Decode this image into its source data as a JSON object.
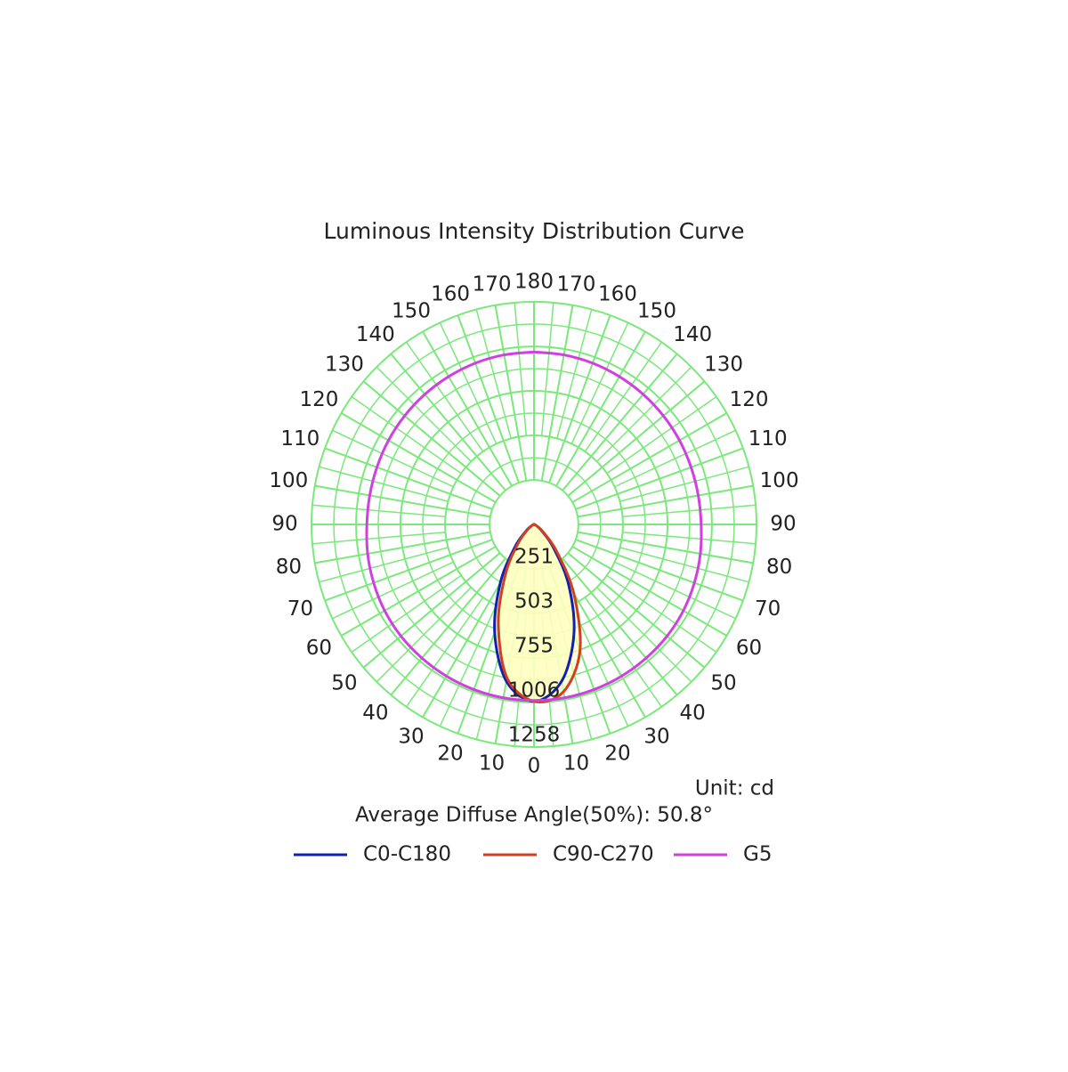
{
  "chart_data": {
    "type": "polar",
    "title": "Luminous Intensity Distribution Curve",
    "unit": "Unit: cd",
    "note": "Average Diffuse Angle(50%): 50.8°",
    "rlim": [
      0,
      1258
    ],
    "rticks": [
      251,
      503,
      755,
      1006,
      1258
    ],
    "xticks": [
      {
        "value": -170,
        "label": "170"
      },
      {
        "value": -160,
        "label": "160"
      },
      {
        "value": -150,
        "label": "150"
      },
      {
        "value": -140,
        "label": "140"
      },
      {
        "value": -130,
        "label": "130"
      },
      {
        "value": -120,
        "label": "120"
      },
      {
        "value": -110,
        "label": "110"
      },
      {
        "value": -100,
        "label": "100"
      },
      {
        "value": -90,
        "label": "90"
      },
      {
        "value": -80,
        "label": "80"
      },
      {
        "value": -70,
        "label": "70"
      },
      {
        "value": -60,
        "label": "60"
      },
      {
        "value": -50,
        "label": "50"
      },
      {
        "value": -40,
        "label": "40"
      },
      {
        "value": -30,
        "label": "30"
      },
      {
        "value": -20,
        "label": "20"
      },
      {
        "value": -10,
        "label": "10"
      },
      0,
      10,
      20,
      30,
      40,
      50,
      60,
      70,
      80,
      90,
      100,
      110,
      120,
      130,
      140,
      150,
      160,
      170,
      180
    ],
    "grid_color": "#7be87b",
    "fill_color": "#ffffc0",
    "series": [
      {
        "name": "C0-C180",
        "color": "#1020b0",
        "x": [
          -90,
          -80,
          -70,
          -60,
          -50,
          -40,
          -30,
          -20,
          -10,
          0,
          10,
          20,
          30,
          40,
          50,
          60,
          70,
          80,
          90
        ],
        "values": [
          0,
          0,
          5,
          20,
          60,
          170,
          380,
          650,
          900,
          1000,
          900,
          660,
          390,
          170,
          60,
          20,
          5,
          0,
          0
        ]
      },
      {
        "name": "C90-C270",
        "color": "#d04020",
        "x": [
          -90,
          -80,
          -70,
          -60,
          -50,
          -40,
          -30,
          -20,
          -10,
          0,
          10,
          20,
          30,
          40,
          50,
          60,
          70,
          80,
          90
        ],
        "values": [
          0,
          0,
          0,
          15,
          50,
          140,
          320,
          590,
          880,
          1000,
          960,
          760,
          450,
          200,
          70,
          20,
          5,
          0,
          0
        ]
      },
      {
        "name": "G5",
        "color": "#d040e0",
        "x": [
          -180,
          -170,
          -160,
          -150,
          -140,
          -130,
          -120,
          -110,
          -100,
          -90,
          -80,
          -70,
          -60,
          -50,
          -40,
          -30,
          -20,
          -10,
          0,
          10,
          20,
          30,
          40,
          50,
          60,
          70,
          80,
          90,
          100,
          110,
          120,
          130,
          140,
          150,
          160,
          170,
          180
        ],
        "values": [
          975,
          973,
          970,
          965,
          960,
          955,
          950,
          945,
          943,
          945,
          955,
          965,
          975,
          982,
          986,
          990,
          993,
          995,
          995,
          995,
          993,
          990,
          986,
          982,
          975,
          965,
          955,
          945,
          943,
          945,
          950,
          955,
          960,
          965,
          970,
          973,
          975
        ]
      }
    ]
  }
}
